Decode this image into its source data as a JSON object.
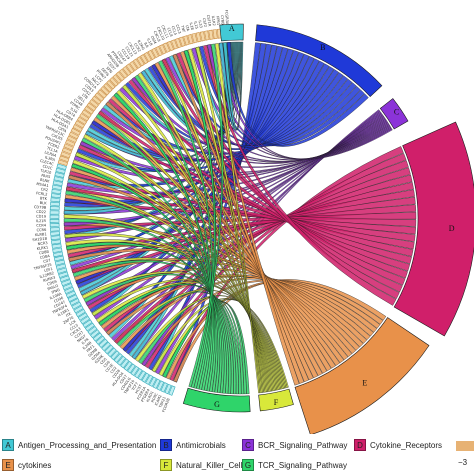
{
  "gene_labels": [
    "FCGR2B",
    "TBX21",
    "ICAM2",
    "RORC",
    "KLRD1",
    "PTGER4",
    "FCER1A",
    "HCST",
    "TCF7",
    "TNFSF10",
    "CD40LG",
    "CD27",
    "HLA-DOA",
    "CD28",
    "CD2",
    "CD3E",
    "CD6",
    "CD5",
    "GZMK",
    "GZMA",
    "GZMB",
    "PRF1",
    "IL2RB",
    "IL7R",
    "NKG7",
    "CCR7",
    "CXCR3",
    "CCL5",
    "LCK",
    "ZAP70",
    "ITK",
    "IL18R1",
    "TNFRSF4",
    "CD247",
    "CD96",
    "IL10RA",
    "IFNG",
    "FASLG",
    "CD69",
    "RUNX3",
    "IL12RB2",
    "LEF1",
    "TNFRSF25",
    "CD7",
    "CD8A",
    "CD8B",
    "KLRK1",
    "NCR3",
    "SH2D1B",
    "KLRB1",
    "CCR6",
    "CCR4",
    "IL21R",
    "CD19",
    "CD22",
    "CD79B",
    "BLK",
    "BTK",
    "FCRL2",
    "CR2",
    "MS4A1",
    "BLNK",
    "PAX5",
    "TLR10",
    "CD1C",
    "CLEC4C",
    "IL3RA",
    "LILRA4",
    "TCL1A",
    "FCER2",
    "POU2AF1",
    "CXCR5",
    "TNFRSF13C",
    "CIITA",
    "HLA-DQA1",
    "HLA-DQB1",
    "HLA-DRB4",
    "CD74",
    "IL16",
    "PTPRC",
    "CD48",
    "SELL",
    "LTB",
    "CD52",
    "CD53",
    "CORO1A",
    "RAC2",
    "LCP2",
    "PTPN7",
    "DEF6",
    "SPN",
    "CD37",
    "ARHGDIB",
    "PTPRCAP",
    "CD247",
    "CCL19",
    "CCL21",
    "CXCL13",
    "CCR2",
    "IL2RG",
    "IL6",
    "IL1B",
    "OSM",
    "CXCL9",
    "CXCL10",
    "CXCL11",
    "CCL8",
    "CCL4",
    "CCL3",
    "TNF",
    "LTA",
    "IL18",
    "IL15",
    "IL33",
    "CSF2",
    "CSF1R",
    "IL1R2",
    "FPR1",
    "CYBB",
    "FCGR3A"
  ],
  "sectors": [
    {
      "letter": "A",
      "color": "#42c9d5"
    },
    {
      "letter": "B",
      "color": "#1f39d8"
    },
    {
      "letter": "C",
      "color": "#8b33d8"
    },
    {
      "letter": "D",
      "color": "#d01f6a"
    },
    {
      "letter": "E",
      "color": "#e8914a"
    },
    {
      "letter": "F",
      "color": "#d8e83a"
    },
    {
      "letter": "G",
      "color": "#2fd46a"
    }
  ],
  "legend": [
    {
      "letter": "A",
      "label": "Antigen_Processing_and_Presentation",
      "color": "#42c9d5"
    },
    {
      "letter": "B",
      "label": "Antimicrobials",
      "color": "#1f39d8"
    },
    {
      "letter": "C",
      "label": "BCR_Signaling_Pathway",
      "color": "#8b33d8"
    },
    {
      "letter": "D",
      "label": "Cytokine_Receptors",
      "color": "#d01f6a"
    },
    {
      "letter": "E",
      "label": "cytokines",
      "color": "#e8914a"
    },
    {
      "letter": "F",
      "label": "Natural_Killer_Cell",
      "color": "#d8e83a"
    },
    {
      "letter": "G",
      "label": "TCR_Signaling_Pathway",
      "color": "#2fd46a"
    }
  ],
  "scale_label": "−3"
}
